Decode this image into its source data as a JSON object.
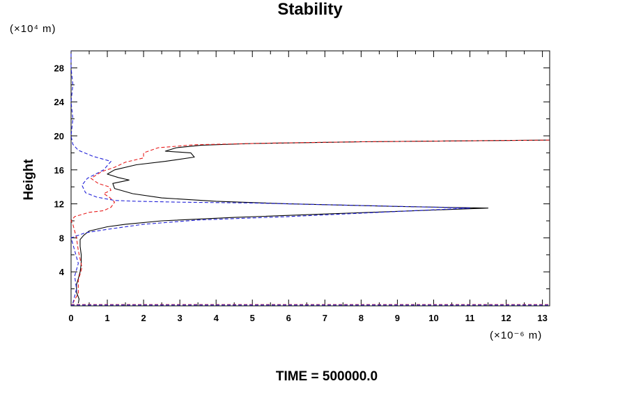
{
  "chart_data": {
    "type": "line",
    "title": "Stability",
    "ylabel": "Height",
    "y_unit": "(×10⁴ m)",
    "x_unit": "(×10⁻⁶ m)",
    "footer": "TIME = 500000.0",
    "xlim": [
      0,
      13.2
    ],
    "ylim": [
      0,
      30
    ],
    "x_ticks": [
      0,
      1,
      2,
      3,
      4,
      5,
      6,
      7,
      8,
      9,
      10,
      11,
      12,
      13
    ],
    "y_ticks": [
      4,
      8,
      12,
      16,
      20,
      24,
      28
    ],
    "series": [
      {
        "name": "black-solid",
        "color": "#000000",
        "dash": "solid",
        "points": [
          [
            0.2,
            0.3
          ],
          [
            0.22,
            0.8
          ],
          [
            0.15,
            1.6
          ],
          [
            0.15,
            2.5
          ],
          [
            0.2,
            3.2
          ],
          [
            0.25,
            4.0
          ],
          [
            0.28,
            5.0
          ],
          [
            0.28,
            6.0
          ],
          [
            0.25,
            7.0
          ],
          [
            0.25,
            7.8
          ],
          [
            0.35,
            8.3
          ],
          [
            0.5,
            8.8
          ],
          [
            1.0,
            9.3
          ],
          [
            1.5,
            9.6
          ],
          [
            2.5,
            10.0
          ],
          [
            4.5,
            10.4
          ],
          [
            7.0,
            10.8
          ],
          [
            9.5,
            11.2
          ],
          [
            11.5,
            11.5
          ],
          [
            9.0,
            11.7
          ],
          [
            6.0,
            12.0
          ],
          [
            4.0,
            12.3
          ],
          [
            2.5,
            12.7
          ],
          [
            1.7,
            13.2
          ],
          [
            1.2,
            13.8
          ],
          [
            1.15,
            14.4
          ],
          [
            1.6,
            14.8
          ],
          [
            1.3,
            15.1
          ],
          [
            1.0,
            15.5
          ],
          [
            1.2,
            16.0
          ],
          [
            1.8,
            16.6
          ],
          [
            2.6,
            17.0
          ],
          [
            3.4,
            17.5
          ],
          [
            3.3,
            18.0
          ],
          [
            2.6,
            18.2
          ],
          [
            2.9,
            18.6
          ],
          [
            3.6,
            18.9
          ],
          [
            5.0,
            19.1
          ],
          [
            8.0,
            19.3
          ],
          [
            13.2,
            19.5
          ]
        ]
      },
      {
        "name": "red-dashed",
        "color": "#e81c1c",
        "dash": "dashed",
        "points": [
          [
            0.05,
            0.3
          ],
          [
            0.2,
            1.5
          ],
          [
            0.2,
            3.0
          ],
          [
            0.3,
            4.5
          ],
          [
            0.2,
            6.5
          ],
          [
            0.15,
            8.0
          ],
          [
            0.05,
            9.6
          ],
          [
            0.0,
            10.0
          ],
          [
            0.1,
            10.5
          ],
          [
            0.5,
            11.0
          ],
          [
            0.9,
            11.2
          ],
          [
            1.1,
            11.6
          ],
          [
            1.2,
            12.2
          ],
          [
            1.05,
            12.8
          ],
          [
            0.9,
            13.2
          ],
          [
            1.1,
            13.6
          ],
          [
            1.05,
            14.0
          ],
          [
            0.75,
            14.4
          ],
          [
            0.55,
            15.0
          ],
          [
            0.85,
            15.8
          ],
          [
            1.2,
            16.3
          ],
          [
            1.5,
            16.9
          ],
          [
            2.0,
            17.4
          ],
          [
            2.0,
            18.0
          ],
          [
            2.4,
            18.6
          ],
          [
            3.4,
            18.95
          ],
          [
            5.5,
            19.15
          ],
          [
            8.0,
            19.3
          ],
          [
            13.2,
            19.5
          ]
        ]
      },
      {
        "name": "blue-dashed",
        "color": "#2020d8",
        "dash": "dashed",
        "points": [
          [
            0.05,
            0.3
          ],
          [
            0.15,
            2.0
          ],
          [
            0.1,
            3.5
          ],
          [
            0.2,
            5.0
          ],
          [
            0.1,
            6.5
          ],
          [
            0.0,
            8.0
          ],
          [
            0.4,
            8.6
          ],
          [
            1.0,
            9.0
          ],
          [
            2.0,
            9.6
          ],
          [
            3.5,
            10.1
          ],
          [
            6.0,
            10.5
          ],
          [
            8.5,
            11.0
          ],
          [
            11.0,
            11.5
          ],
          [
            8.0,
            11.8
          ],
          [
            5.0,
            12.1
          ],
          [
            3.0,
            12.2
          ],
          [
            1.8,
            12.3
          ],
          [
            1.2,
            12.4
          ],
          [
            0.7,
            12.8
          ],
          [
            0.4,
            13.3
          ],
          [
            0.3,
            14.2
          ],
          [
            0.45,
            15.0
          ],
          [
            0.9,
            16.0
          ],
          [
            1.1,
            17.0
          ],
          [
            0.6,
            17.6
          ],
          [
            0.2,
            18.3
          ],
          [
            0.05,
            19.0
          ],
          [
            0.0,
            20.0
          ],
          [
            0.05,
            22.0
          ],
          [
            0.0,
            24.0
          ],
          [
            0.05,
            26.0
          ],
          [
            0.0,
            28.0
          ],
          [
            0.0,
            30.0
          ]
        ]
      },
      {
        "name": "red-baseline",
        "color": "#e81c1c",
        "dash": "dashed",
        "points": [
          [
            0.0,
            0.15
          ],
          [
            13.2,
            0.15
          ]
        ]
      },
      {
        "name": "blue-baseline",
        "color": "#2020d8",
        "dash": "dashed",
        "points": [
          [
            0.0,
            0.1
          ],
          [
            13.2,
            0.1
          ]
        ]
      }
    ]
  }
}
